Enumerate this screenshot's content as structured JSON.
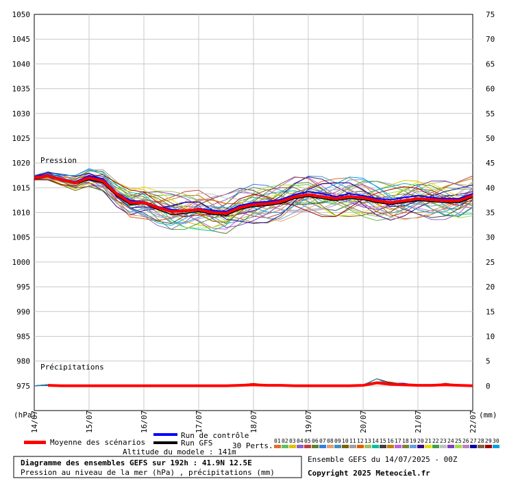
{
  "header": {
    "pressure_label": "Pression",
    "precip_label": "Précipitations"
  },
  "axes": {
    "left_unit": "(hPa)",
    "right_unit": "(mm)"
  },
  "legend": {
    "mean_label": "Moyenne des scénarios",
    "control_label": "Run de contrôle",
    "gfs_label": "Run GFS",
    "perts_label": "30 Perts.",
    "mean_color": "#ff0000",
    "control_color": "#0000ff",
    "gfs_color": "#000000",
    "perts": [
      {
        "num": "01",
        "color": "#e07030"
      },
      {
        "num": "02",
        "color": "#60c060"
      },
      {
        "num": "03",
        "color": "#e0c000"
      },
      {
        "num": "04",
        "color": "#9060c0"
      },
      {
        "num": "05",
        "color": "#c04040"
      },
      {
        "num": "06",
        "color": "#608030"
      },
      {
        "num": "07",
        "color": "#3080e0"
      },
      {
        "num": "08",
        "color": "#e0a070"
      },
      {
        "num": "09",
        "color": "#4090c0"
      },
      {
        "num": "10",
        "color": "#806000"
      },
      {
        "num": "11",
        "color": "#a0a0a0"
      },
      {
        "num": "12",
        "color": "#e06000"
      },
      {
        "num": "13",
        "color": "#a0c060"
      },
      {
        "num": "14",
        "color": "#00c0a0"
      },
      {
        "num": "15",
        "color": "#404040"
      },
      {
        "num": "16",
        "color": "#c08000"
      },
      {
        "num": "17",
        "color": "#c060e0"
      },
      {
        "num": "18",
        "color": "#808040"
      },
      {
        "num": "19",
        "color": "#60a0e0"
      },
      {
        "num": "20",
        "color": "#400080"
      },
      {
        "num": "21",
        "color": "#e0e000"
      },
      {
        "num": "22",
        "color": "#40a040"
      },
      {
        "num": "23",
        "color": "#c0c0c0"
      },
      {
        "num": "24",
        "color": "#8040c0"
      },
      {
        "num": "25",
        "color": "#a0e040"
      },
      {
        "num": "26",
        "color": "#c080c0"
      },
      {
        "num": "27",
        "color": "#0000a0"
      },
      {
        "num": "28",
        "color": "#806040"
      },
      {
        "num": "29",
        "color": "#a00000"
      },
      {
        "num": "30",
        "color": "#00a0e0"
      }
    ]
  },
  "footer": {
    "altitude": "Altitude du modele : 141m",
    "title": "Diagramme des ensembles GEFS sur 192h : 41.9N 12.5E",
    "subtitle": "Pression au niveau de la mer (hPa) , précipitations (mm)",
    "run_info": "Ensemble GEFS du 14/07/2025 - 00Z",
    "copyright": "Copyright 2025 Meteociel.fr"
  },
  "chart_data": {
    "type": "line",
    "x": [
      "14/07 00h",
      "14/07 06h",
      "14/07 12h",
      "14/07 18h",
      "15/07 00h",
      "15/07 06h",
      "15/07 12h",
      "15/07 18h",
      "16/07 00h",
      "16/07 06h",
      "16/07 12h",
      "16/07 18h",
      "17/07 00h",
      "17/07 06h",
      "17/07 12h",
      "17/07 18h",
      "18/07 00h",
      "18/07 06h",
      "18/07 12h",
      "18/07 18h",
      "19/07 00h",
      "19/07 06h",
      "19/07 12h",
      "19/07 18h",
      "20/07 00h",
      "20/07 06h",
      "20/07 12h",
      "20/07 18h",
      "21/07 00h",
      "21/07 06h",
      "21/07 12h",
      "21/07 18h",
      "22/07 00h"
    ],
    "x_tick_labels": [
      "14/07",
      "15/07",
      "16/07",
      "17/07",
      "18/07",
      "19/07",
      "20/07",
      "21/07",
      "22/07"
    ],
    "y_left": {
      "min": 970,
      "max": 1050,
      "ticks": [
        975,
        980,
        985,
        990,
        995,
        1000,
        1005,
        1010,
        1015,
        1020,
        1025,
        1030,
        1035,
        1040,
        1045,
        1050
      ]
    },
    "y_right": {
      "min": -5,
      "max": 75,
      "ticks": [
        0,
        5,
        10,
        15,
        20,
        25,
        30,
        35,
        40,
        45,
        50,
        55,
        60,
        65,
        70,
        75
      ]
    },
    "grid": true,
    "pressure_mean": [
      1017.0,
      1017.4,
      1016.6,
      1016.0,
      1017.0,
      1016.4,
      1013.8,
      1012.0,
      1012.0,
      1011.0,
      1010.2,
      1010.3,
      1010.6,
      1010.0,
      1009.8,
      1011.0,
      1011.6,
      1011.8,
      1012.2,
      1013.2,
      1013.6,
      1013.2,
      1012.8,
      1013.2,
      1013.0,
      1012.4,
      1012.0,
      1012.4,
      1012.8,
      1012.6,
      1012.4,
      1012.4,
      1013.4
    ],
    "pressure_control": [
      1017.2,
      1017.6,
      1016.8,
      1016.2,
      1017.4,
      1016.8,
      1014.0,
      1012.4,
      1012.2,
      1011.2,
      1010.6,
      1010.4,
      1010.8,
      1010.4,
      1010.2,
      1011.4,
      1012.0,
      1012.2,
      1012.6,
      1013.6,
      1014.2,
      1013.8,
      1013.2,
      1013.8,
      1013.4,
      1012.8,
      1012.6,
      1013.0,
      1013.4,
      1013.0,
      1012.8,
      1012.8,
      1013.8
    ],
    "pressure_gfs": [
      1016.8,
      1017.2,
      1016.4,
      1015.8,
      1016.6,
      1016.0,
      1013.4,
      1011.6,
      1011.8,
      1010.6,
      1009.6,
      1009.8,
      1010.2,
      1009.6,
      1009.4,
      1010.6,
      1011.2,
      1011.4,
      1011.8,
      1012.8,
      1013.2,
      1012.8,
      1012.4,
      1012.8,
      1012.6,
      1012.0,
      1011.6,
      1012.0,
      1012.4,
      1012.2,
      1012.0,
      1012.0,
      1013.0
    ],
    "precip_mean": [
      0,
      0.1,
      0,
      0,
      0,
      0,
      0,
      0,
      0,
      0,
      0,
      0,
      0,
      0,
      0,
      0.1,
      0.2,
      0.1,
      0.1,
      0,
      0,
      0,
      0,
      0,
      0.1,
      0.6,
      0.3,
      0.2,
      0.1,
      0.1,
      0.2,
      0.1,
      0
    ],
    "pressure_perts_spread": 1.6
  }
}
